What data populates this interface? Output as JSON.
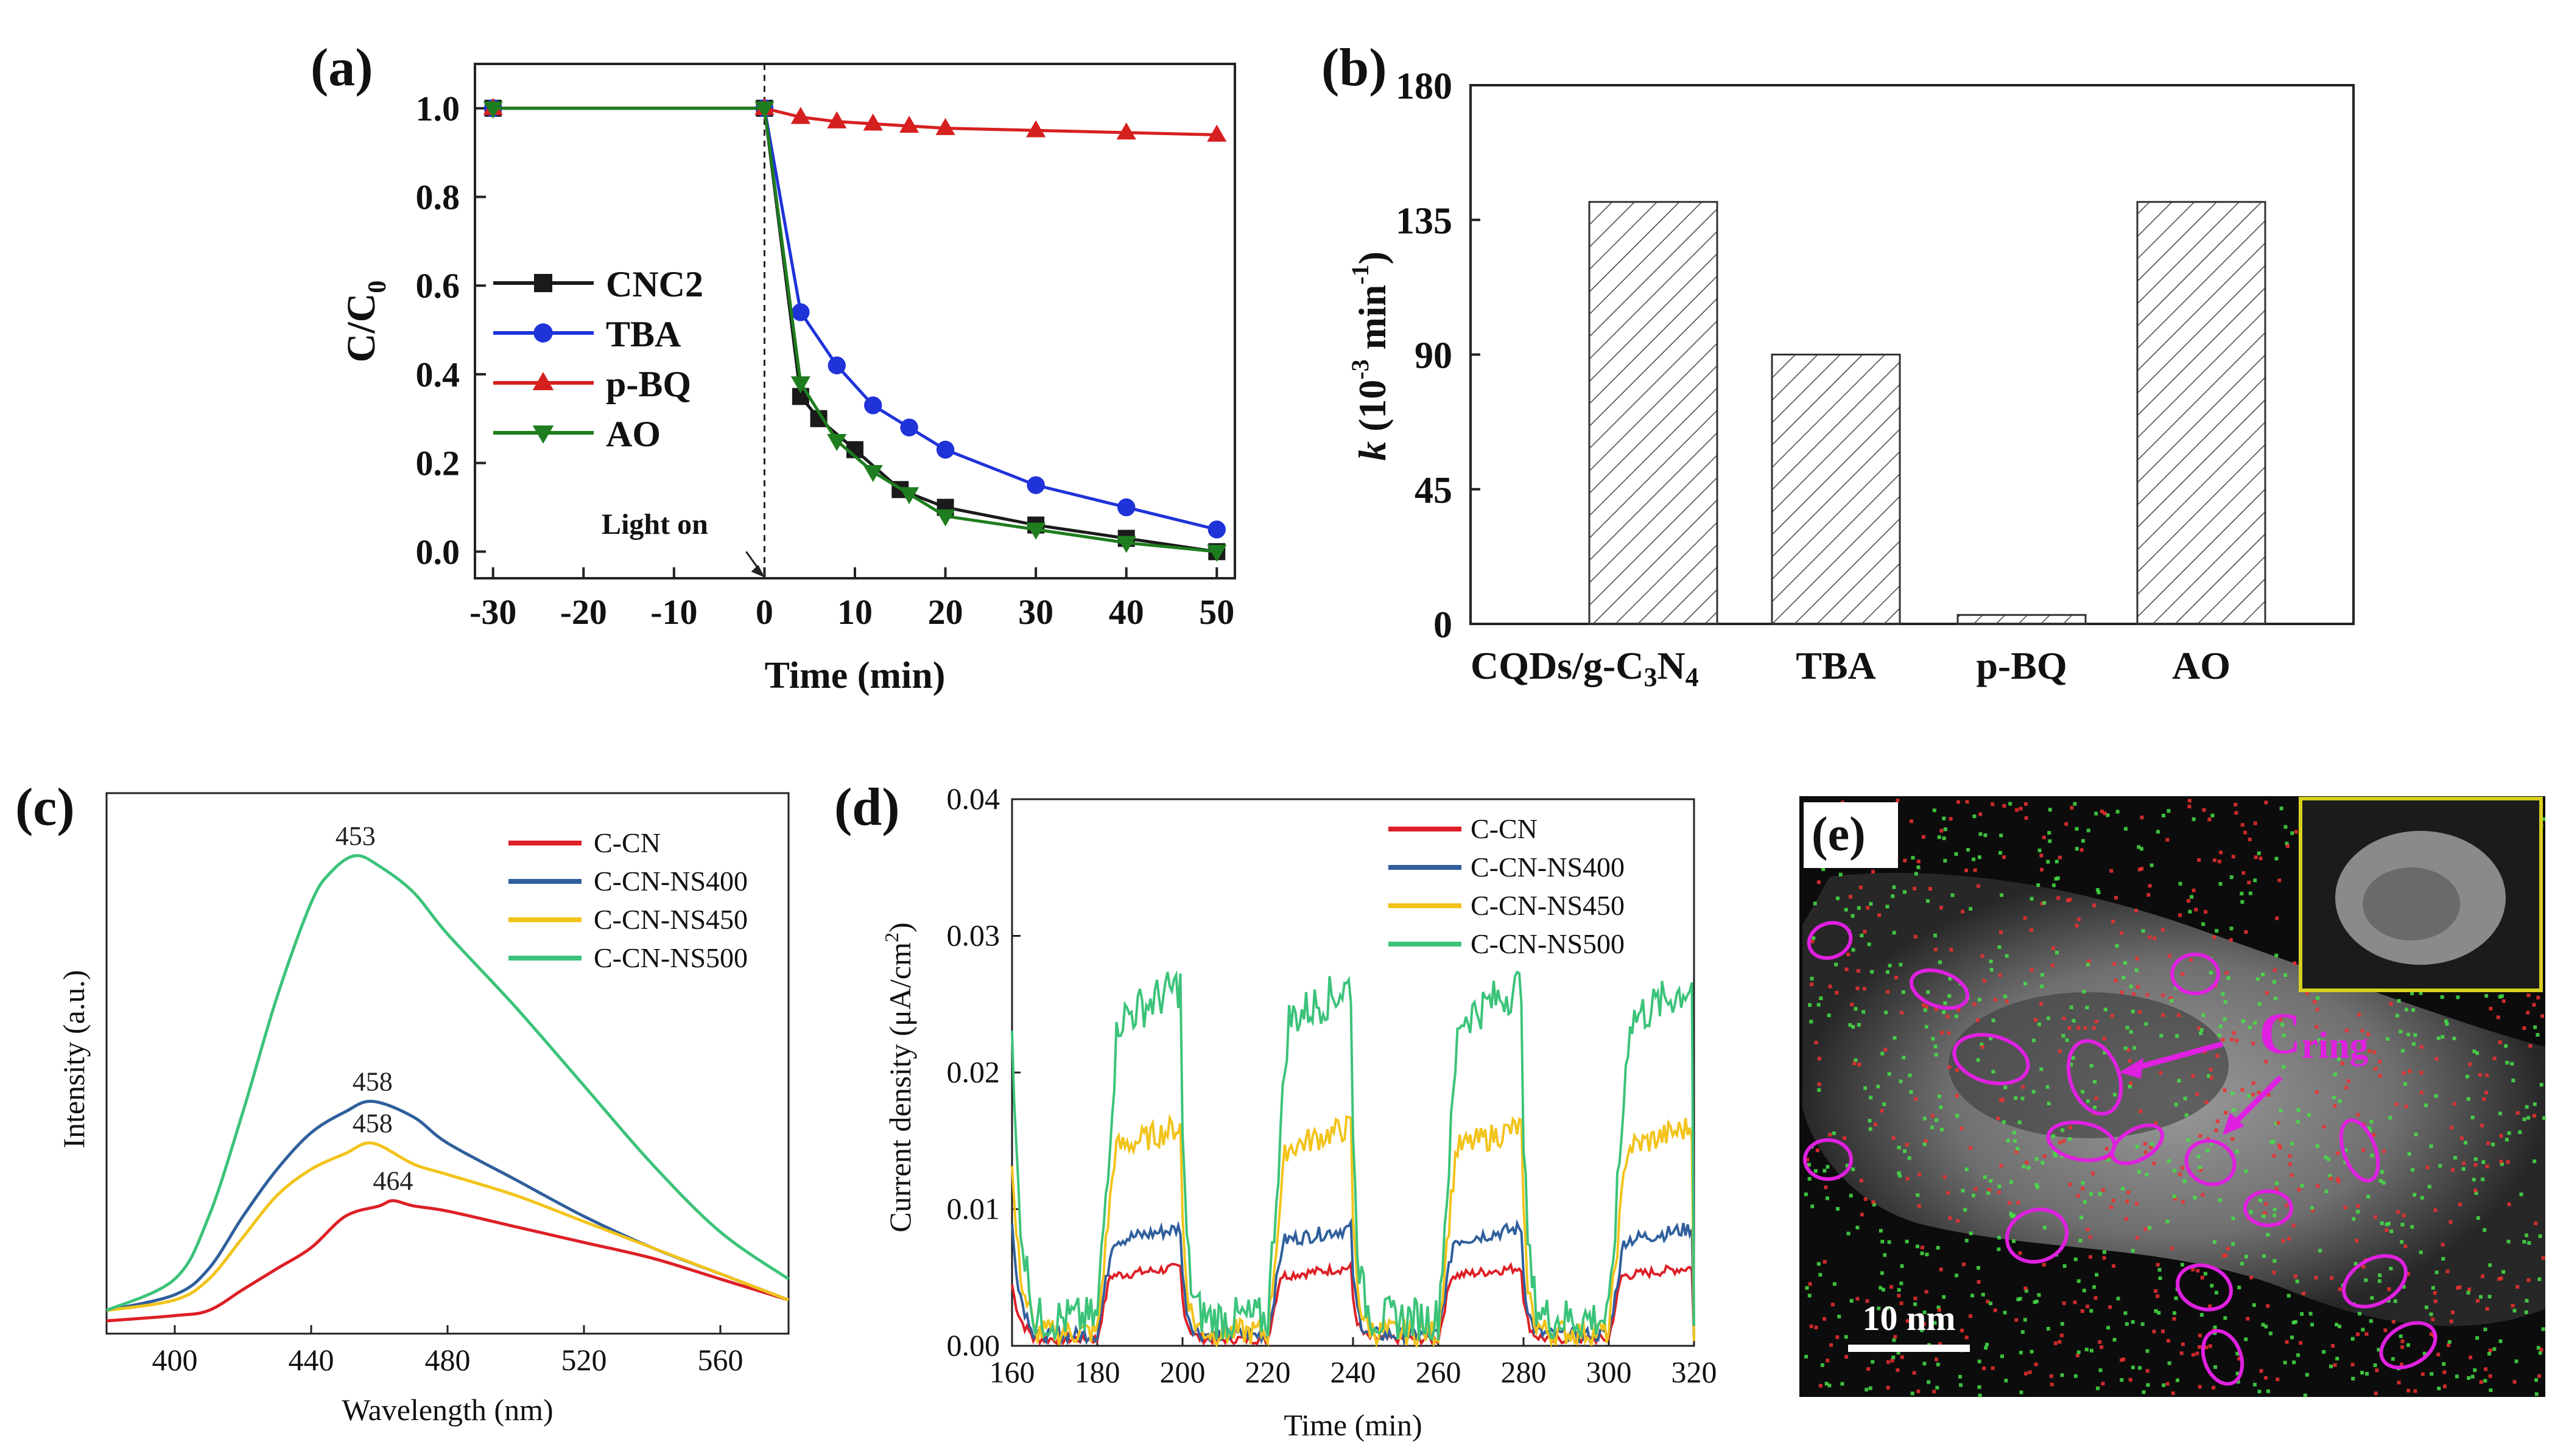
{
  "colors": {
    "black": "#1a1a1a",
    "blue": "#1f33d9",
    "red": "#d62020",
    "green": "#1e7d1e",
    "cn_red": "#dd1f26",
    "cn_blue": "#2f5f9c",
    "cn_yellow": "#f2c31a",
    "cn_green": "#3cc37a",
    "magenta": "#e020e0",
    "inset_border": "#d8d020"
  },
  "chart_data": [
    {
      "panel": "(a)",
      "type": "line",
      "xlabel": "Time (min)",
      "ylabel_main": "C/C",
      "ylabel_sub": "0",
      "xlim": [
        -32,
        52
      ],
      "ylim": [
        -0.06,
        1.1
      ],
      "xticks": [
        -30,
        -20,
        -10,
        0,
        10,
        20,
        30,
        40,
        50
      ],
      "yticks": [
        0.0,
        0.2,
        0.4,
        0.6,
        0.8,
        1.0
      ],
      "ytick_labels": [
        "0.0",
        "0.2",
        "0.4",
        "0.6",
        "0.8",
        "1.0"
      ],
      "annotation": "Light on",
      "series": [
        {
          "name": "CNC2",
          "marker": "square",
          "color": "#1a1a1a",
          "x": [
            -30,
            0,
            4,
            6,
            10,
            15,
            20,
            30,
            40,
            50
          ],
          "y": [
            1.0,
            1.0,
            0.35,
            0.3,
            0.23,
            0.14,
            0.1,
            0.06,
            0.03,
            0.0
          ]
        },
        {
          "name": "TBA",
          "marker": "circle",
          "color": "#1f33d9",
          "x": [
            -30,
            0,
            4,
            8,
            12,
            16,
            20,
            30,
            40,
            50
          ],
          "y": [
            1.0,
            1.0,
            0.54,
            0.42,
            0.33,
            0.28,
            0.23,
            0.15,
            0.1,
            0.05
          ]
        },
        {
          "name": "p-BQ",
          "marker": "triangle-up",
          "color": "#d62020",
          "x": [
            -30,
            0,
            4,
            8,
            12,
            16,
            20,
            30,
            40,
            50
          ],
          "y": [
            1.0,
            1.0,
            0.98,
            0.97,
            0.965,
            0.96,
            0.955,
            0.95,
            0.945,
            0.94
          ]
        },
        {
          "name": "AO",
          "marker": "triangle-down",
          "color": "#1e7d1e",
          "x": [
            -30,
            0,
            4,
            8,
            12,
            16,
            20,
            30,
            40,
            50
          ],
          "y": [
            1.0,
            1.0,
            0.38,
            0.25,
            0.18,
            0.13,
            0.08,
            0.05,
            0.02,
            0.0
          ]
        }
      ]
    },
    {
      "panel": "(b)",
      "type": "bar",
      "ylabel": "k (10-3 min-1)",
      "ylabel_k": "k",
      "ylabel_rest": " (10",
      "ylabel_exp1": "-3",
      "ylabel_mid": " min",
      "ylabel_exp2": "-1",
      "ylabel_close": ")",
      "ylim": [
        0,
        180
      ],
      "yticks": [
        0,
        45,
        90,
        135,
        180
      ],
      "categories": [
        "CQDs/g-C3N4",
        "TBA",
        "p-BQ",
        "AO"
      ],
      "category_parts": {
        "main": "CQDs/g-C",
        "sub1": "3",
        "mid": "N",
        "sub2": "4"
      },
      "values": [
        141,
        90,
        3,
        141
      ]
    },
    {
      "panel": "(c)",
      "type": "line",
      "xlabel": "Wavelength (nm)",
      "ylabel": "Intensity (a.u.)",
      "xlim": [
        380,
        580
      ],
      "xticks": [
        400,
        440,
        480,
        520,
        560
      ],
      "series": [
        {
          "name": "C-CN",
          "color": "#dd1f26",
          "peak": 464,
          "x": [
            380,
            400,
            410,
            420,
            430,
            440,
            450,
            460,
            464,
            470,
            480,
            500,
            520,
            540,
            560,
            580
          ],
          "y": [
            0.0,
            0.01,
            0.02,
            0.06,
            0.1,
            0.14,
            0.2,
            0.22,
            0.23,
            0.22,
            0.21,
            0.18,
            0.15,
            0.12,
            0.08,
            0.04
          ]
        },
        {
          "name": "C-CN-NS400",
          "color": "#2f5f9c",
          "peak": 458,
          "x": [
            380,
            400,
            410,
            420,
            430,
            440,
            450,
            458,
            470,
            480,
            500,
            520,
            540,
            560,
            580
          ],
          "y": [
            0.02,
            0.05,
            0.1,
            0.2,
            0.29,
            0.36,
            0.4,
            0.42,
            0.39,
            0.34,
            0.27,
            0.2,
            0.14,
            0.09,
            0.04
          ]
        },
        {
          "name": "C-CN-NS450",
          "color": "#f2c31a",
          "peak": 458,
          "x": [
            380,
            400,
            410,
            420,
            430,
            440,
            450,
            458,
            470,
            480,
            500,
            520,
            540,
            560,
            580
          ],
          "y": [
            0.02,
            0.04,
            0.08,
            0.16,
            0.24,
            0.29,
            0.32,
            0.34,
            0.3,
            0.28,
            0.24,
            0.19,
            0.14,
            0.09,
            0.04
          ]
        },
        {
          "name": "C-CN-NS500",
          "color": "#3cc37a",
          "peak": 453,
          "x": [
            380,
            400,
            410,
            420,
            430,
            440,
            446,
            453,
            460,
            470,
            480,
            500,
            520,
            540,
            560,
            580
          ],
          "y": [
            0.02,
            0.08,
            0.2,
            0.4,
            0.62,
            0.8,
            0.86,
            0.89,
            0.87,
            0.82,
            0.74,
            0.6,
            0.45,
            0.3,
            0.17,
            0.08
          ]
        }
      ],
      "peak_labels": [
        "453",
        "458",
        "458",
        "464"
      ]
    },
    {
      "panel": "(d)",
      "type": "line",
      "xlabel": "Time (min)",
      "ylabel": "Current density (μA/cm",
      "ylabel_exp": "2",
      "ylabel_close": ")",
      "xlim": [
        160,
        320
      ],
      "ylim": [
        0,
        0.04
      ],
      "xticks": [
        160,
        180,
        200,
        220,
        240,
        260,
        280,
        300,
        320
      ],
      "yticks": [
        0.0,
        0.01,
        0.02,
        0.03,
        0.04
      ],
      "ytick_labels": [
        "0.00",
        "0.01",
        "0.02",
        "0.03",
        "0.04"
      ],
      "on_intervals": [
        [
          180,
          200
        ],
        [
          220,
          240
        ],
        [
          260,
          280
        ],
        [
          300,
          320
        ]
      ],
      "series": [
        {
          "name": "C-CN",
          "color": "#dd1f26",
          "on": 0.005,
          "off": 0.0005,
          "spike": 0.004
        },
        {
          "name": "C-CN-NS400",
          "color": "#2f5f9c",
          "on": 0.0075,
          "off": 0.0008,
          "spike": 0.008
        },
        {
          "name": "C-CN-NS450",
          "color": "#f2c31a",
          "on": 0.014,
          "off": 0.001,
          "spike": 0.012
        },
        {
          "name": "C-CN-NS500",
          "color": "#3cc37a",
          "on": 0.023,
          "off": 0.002,
          "spike": 0.02
        }
      ]
    }
  ],
  "panel_e": {
    "label": "(e)",
    "scale_bar": "10 nm",
    "annotation_main": "C",
    "annotation_sub": "ring"
  }
}
